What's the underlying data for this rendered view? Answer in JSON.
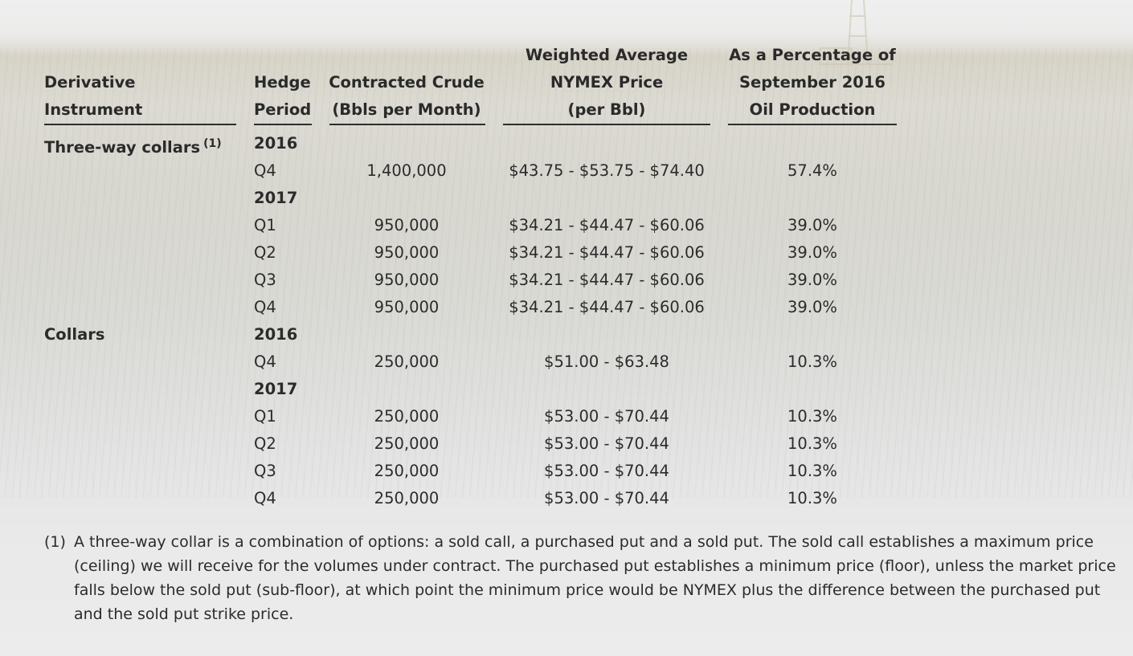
{
  "headers": {
    "instrument": [
      "Derivative",
      "Instrument"
    ],
    "period": [
      "Hedge",
      "Period"
    ],
    "volume": [
      "Contracted Crude",
      "(Bbls per Month)"
    ],
    "price": [
      "Weighted Average",
      "NYMEX Price",
      "(per Bbl)"
    ],
    "percent": [
      "As a Percentage of",
      "September 2016",
      "Oil Production"
    ]
  },
  "sections": [
    {
      "instrument": "Three-way collars",
      "footnote_marker": "(1)",
      "rows": [
        {
          "period": "2016",
          "is_year": true,
          "volume": "",
          "price": "",
          "percent": ""
        },
        {
          "period": "Q4",
          "is_year": false,
          "volume": "1,400,000",
          "price": "$43.75 - $53.75 - $74.40",
          "percent": "57.4%"
        },
        {
          "period": "2017",
          "is_year": true,
          "volume": "",
          "price": "",
          "percent": ""
        },
        {
          "period": "Q1",
          "is_year": false,
          "volume": "950,000",
          "price": "$34.21 - $44.47 - $60.06",
          "percent": "39.0%"
        },
        {
          "period": "Q2",
          "is_year": false,
          "volume": "950,000",
          "price": "$34.21 - $44.47 - $60.06",
          "percent": "39.0%"
        },
        {
          "period": "Q3",
          "is_year": false,
          "volume": "950,000",
          "price": "$34.21 - $44.47 - $60.06",
          "percent": "39.0%"
        },
        {
          "period": "Q4",
          "is_year": false,
          "volume": "950,000",
          "price": "$34.21 - $44.47 - $60.06",
          "percent": "39.0%"
        }
      ]
    },
    {
      "instrument": "Collars",
      "footnote_marker": "",
      "rows": [
        {
          "period": "2016",
          "is_year": true,
          "volume": "",
          "price": "",
          "percent": ""
        },
        {
          "period": "Q4",
          "is_year": false,
          "volume": "250,000",
          "price": "$51.00 - $63.48",
          "percent": "10.3%"
        },
        {
          "period": "2017",
          "is_year": true,
          "volume": "",
          "price": "",
          "percent": ""
        },
        {
          "period": "Q1",
          "is_year": false,
          "volume": "250,000",
          "price": "$53.00 - $70.44",
          "percent": "10.3%"
        },
        {
          "period": "Q2",
          "is_year": false,
          "volume": "250,000",
          "price": "$53.00 - $70.44",
          "percent": "10.3%"
        },
        {
          "period": "Q3",
          "is_year": false,
          "volume": "250,000",
          "price": "$53.00 - $70.44",
          "percent": "10.3%"
        },
        {
          "period": "Q4",
          "is_year": false,
          "volume": "250,000",
          "price": "$53.00 - $70.44",
          "percent": "10.3%"
        }
      ]
    }
  ],
  "footnote": {
    "marker": "(1)",
    "text": "A three-way collar is a combination of options: a sold call, a purchased put and a sold put. The sold call establishes a maximum price (ceiling) we will receive for the volumes under contract. The purchased put establishes a minimum price (floor), unless the market price falls below the sold put (sub-floor), at which point the minimum price would be NYMEX plus the difference between the purchased put and the sold put strike price."
  }
}
